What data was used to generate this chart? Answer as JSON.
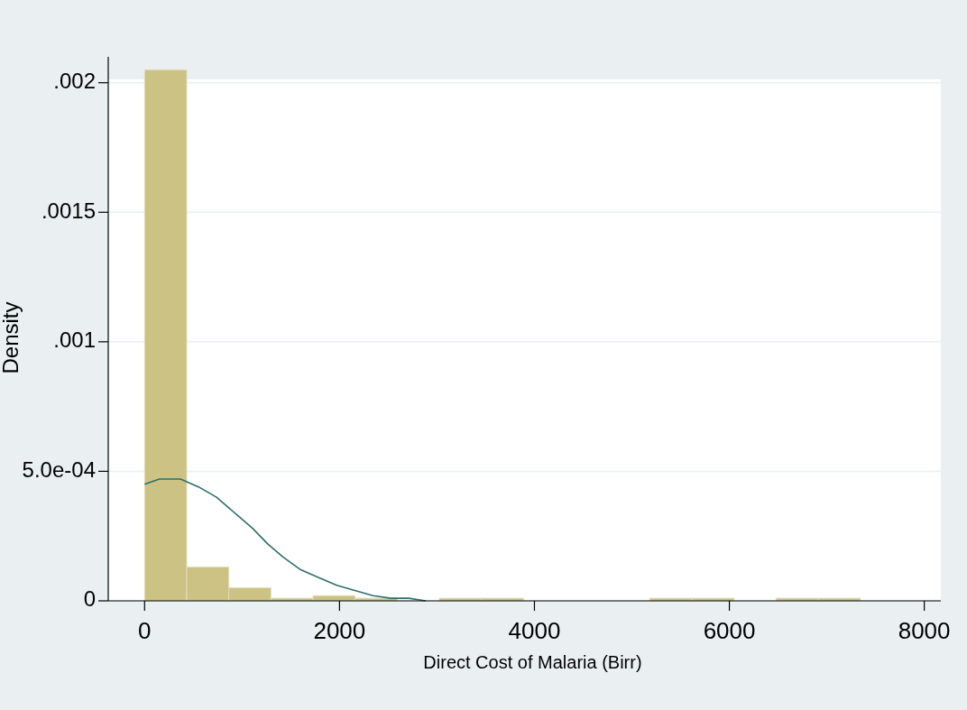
{
  "chart_data": {
    "type": "histogram",
    "xlabel": "Direct Cost of Malaria (Birr)",
    "ylabel": "Density",
    "xlim": [
      -373,
      8170
    ],
    "xticks": [
      0,
      2000,
      4000,
      6000,
      8000
    ],
    "ylim": [
      0,
      0.0021
    ],
    "yticks": [
      {
        "value": 0,
        "label": "0"
      },
      {
        "value": 0.0005,
        "label": "5.0e-04"
      },
      {
        "value": 0.001,
        "label": ".001"
      },
      {
        "value": 0.0015,
        "label": ".0015"
      },
      {
        "value": 0.002,
        "label": ".002"
      }
    ],
    "grid": "y",
    "series": [
      {
        "color": "#cbc283",
        "bins": [
          0,
          432,
          864,
          1296,
          1728,
          2160,
          2592,
          3024,
          3456,
          3888,
          4320,
          4752,
          5184,
          5616,
          6048,
          6480,
          6912,
          7344
        ],
        "values": [
          0.00205,
          0.00013,
          5e-05,
          1e-05,
          2e-05,
          1e-05,
          0,
          1e-05,
          1e-05,
          0,
          0,
          0,
          1e-05,
          1e-05,
          0,
          1e-05,
          1e-05
        ]
      },
      {
        "type": "line",
        "color": "#2f6f6a",
        "x": [
          0,
          152,
          368,
          553,
          738,
          861,
          985,
          1108,
          1263,
          1417,
          1602,
          1787,
          1972,
          2157,
          2343,
          2528,
          2710,
          2884
        ],
        "values": [
          0.00045,
          0.00047,
          0.00047,
          0.00044,
          0.0004,
          0.00036,
          0.00032,
          0.00028,
          0.00022,
          0.00017,
          0.00012,
          9e-05,
          6e-05,
          4e-05,
          2e-05,
          1e-05,
          1e-05,
          0
        ]
      }
    ]
  }
}
